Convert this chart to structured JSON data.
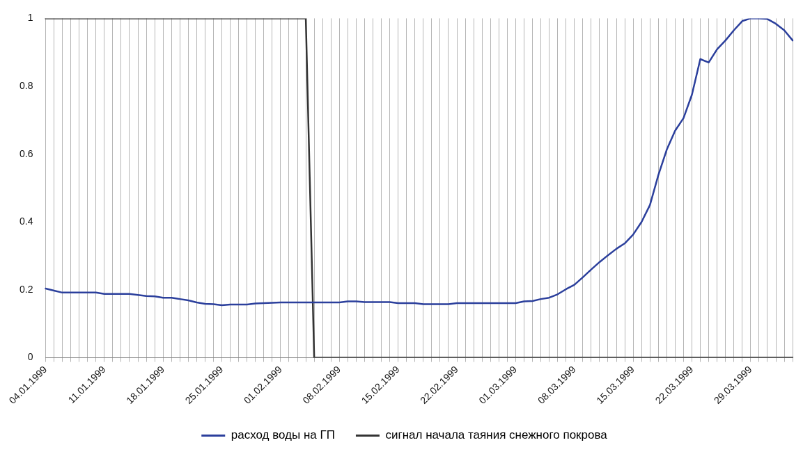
{
  "chart_data": {
    "type": "line",
    "categories": [
      "04.01.1999",
      null,
      null,
      null,
      null,
      null,
      null,
      "11.01.1999",
      null,
      null,
      null,
      null,
      null,
      null,
      "18.01.1999",
      null,
      null,
      null,
      null,
      null,
      null,
      "25.01.1999",
      null,
      null,
      null,
      null,
      null,
      null,
      "01.02.1999",
      null,
      null,
      null,
      null,
      null,
      null,
      "08.02.1999",
      null,
      null,
      null,
      null,
      null,
      null,
      "15.02.1999",
      null,
      null,
      null,
      null,
      null,
      null,
      "22.02.1999",
      null,
      null,
      null,
      null,
      null,
      null,
      "01.03.1999",
      null,
      null,
      null,
      null,
      null,
      null,
      "08.03.1999",
      null,
      null,
      null,
      null,
      null,
      null,
      "15.03.1999",
      null,
      null,
      null,
      null,
      null,
      null,
      "22.03.1999",
      null,
      null,
      null,
      null,
      null,
      null,
      "29.03.1999",
      null,
      null,
      null,
      null,
      null
    ],
    "series": [
      {
        "name": "расход воды на ГП",
        "color": "#2b3f9c",
        "values": [
          0.204,
          0.198,
          0.192,
          0.192,
          0.192,
          0.192,
          0.192,
          0.188,
          0.188,
          0.188,
          0.188,
          0.185,
          0.182,
          0.181,
          0.177,
          0.177,
          0.173,
          0.169,
          0.163,
          0.159,
          0.158,
          0.155,
          0.157,
          0.157,
          0.157,
          0.16,
          0.161,
          0.162,
          0.163,
          0.163,
          0.163,
          0.163,
          0.163,
          0.163,
          0.163,
          0.163,
          0.166,
          0.166,
          0.164,
          0.164,
          0.164,
          0.164,
          0.161,
          0.161,
          0.161,
          0.158,
          0.158,
          0.158,
          0.158,
          0.161,
          0.161,
          0.161,
          0.161,
          0.161,
          0.161,
          0.161,
          0.161,
          0.166,
          0.167,
          0.173,
          0.177,
          0.187,
          0.202,
          0.215,
          0.237,
          0.26,
          0.282,
          0.302,
          0.321,
          0.337,
          0.363,
          0.4,
          0.45,
          0.538,
          0.613,
          0.669,
          0.706,
          0.775,
          0.88,
          0.87,
          0.909,
          0.935,
          0.965,
          0.992,
          1.0,
          1.0,
          0.998,
          0.984,
          0.965,
          0.935
        ]
      },
      {
        "name": "сигнал начала таяния снежного покрова",
        "color": "#333333",
        "values": [
          1,
          1,
          1,
          1,
          1,
          1,
          1,
          1,
          1,
          1,
          1,
          1,
          1,
          1,
          1,
          1,
          1,
          1,
          1,
          1,
          1,
          1,
          1,
          1,
          1,
          1,
          1,
          1,
          1,
          1,
          1,
          1,
          0,
          0,
          0,
          0,
          0,
          0,
          0,
          0,
          0,
          0,
          0,
          0,
          0,
          0,
          0,
          0,
          0,
          0,
          0,
          0,
          0,
          0,
          0,
          0,
          0,
          0,
          0,
          0,
          0,
          0,
          0,
          0,
          0,
          0,
          0,
          0,
          0,
          0,
          0,
          0,
          0,
          0,
          0,
          0,
          0,
          0,
          0,
          0,
          0,
          0,
          0,
          0,
          0,
          0,
          0,
          0,
          0,
          0
        ]
      }
    ],
    "ylim": [
      0,
      1
    ],
    "yticks": [
      0,
      0.2,
      0.4,
      0.6,
      0.8,
      1
    ],
    "grid": "x",
    "legend": "bottom",
    "marker": "none",
    "line_style": "solid"
  }
}
